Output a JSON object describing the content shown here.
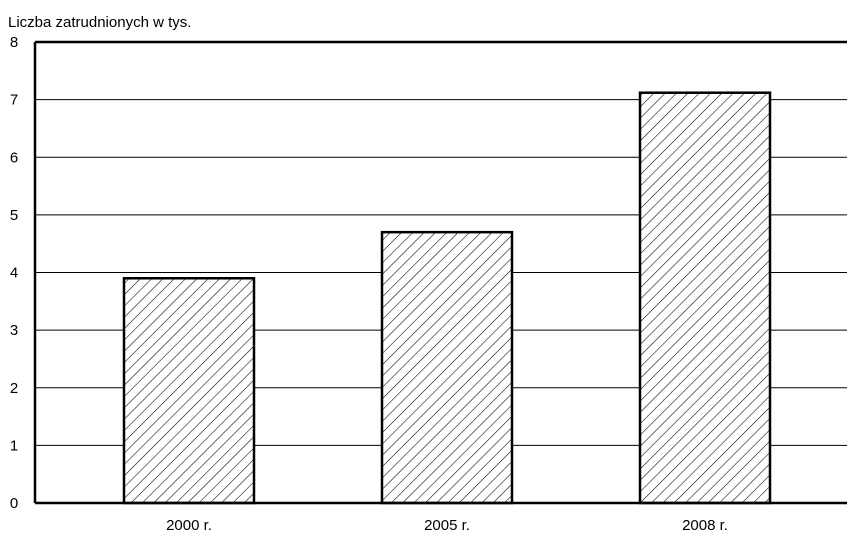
{
  "chart_data": {
    "type": "bar",
    "categories": [
      "2000 r.",
      "2005 r.",
      "2008 r."
    ],
    "values": [
      3.9,
      4.7,
      7.12
    ],
    "title": "",
    "xlabel": "",
    "ylabel": "Liczba zatrudnionych w tys.",
    "ylim": [
      0,
      8
    ],
    "yticks": [
      0,
      1,
      2,
      3,
      4,
      5,
      6,
      7,
      8
    ],
    "grid": true,
    "legend": "none",
    "bar_fill": "diagonal-hatch",
    "colors": {
      "bar_stroke": "#000000",
      "hatch": "#000000",
      "grid": "#000000",
      "background": "#ffffff"
    }
  }
}
